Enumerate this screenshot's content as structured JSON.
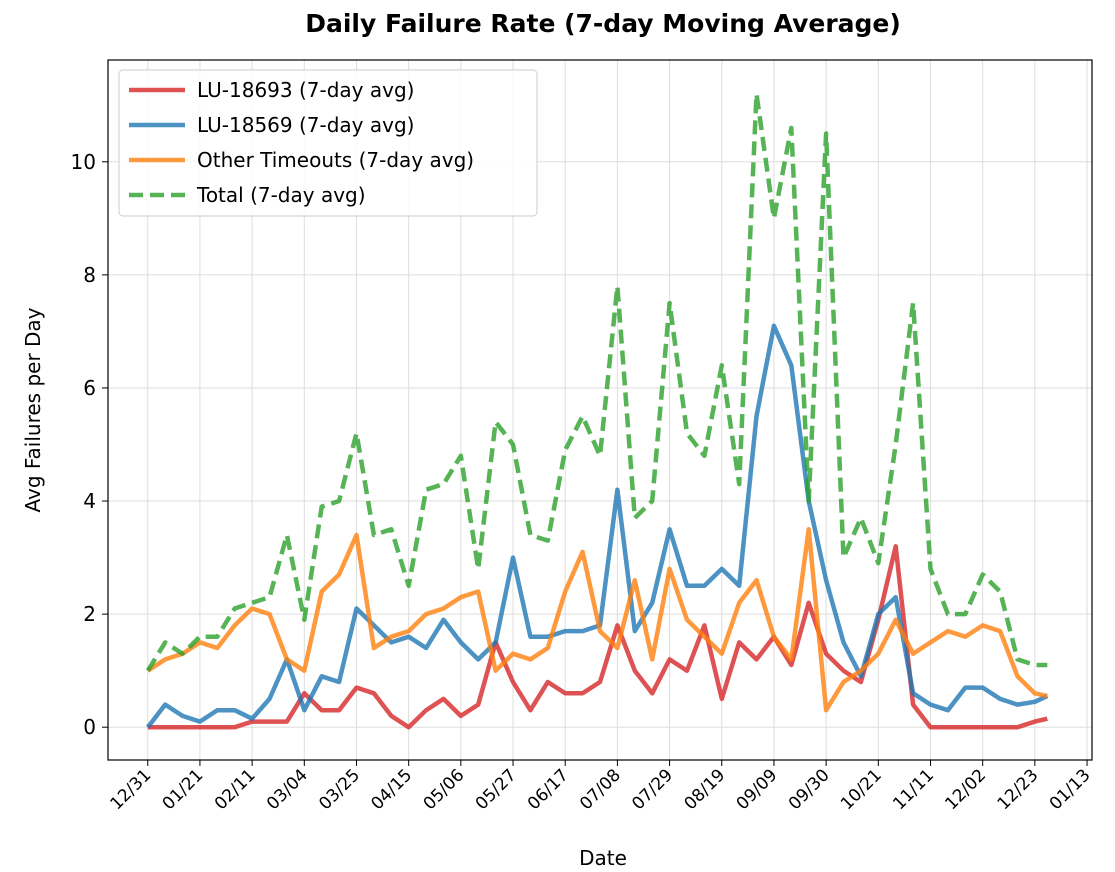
{
  "chart_data": {
    "type": "line",
    "title": "Daily Failure Rate (7-day Moving Average)",
    "x_label": "Date",
    "y_label": "Avg Failures per Day",
    "x": [
      "12/31",
      "01/07",
      "01/14",
      "01/21",
      "01/28",
      "02/04",
      "02/11",
      "02/18",
      "02/25",
      "03/04",
      "03/11",
      "03/18",
      "03/25",
      "04/01",
      "04/08",
      "04/15",
      "04/22",
      "04/29",
      "05/06",
      "05/13",
      "05/20",
      "05/27",
      "06/03",
      "06/10",
      "06/17",
      "06/24",
      "07/01",
      "07/08",
      "07/15",
      "07/22",
      "07/29",
      "08/05",
      "08/12",
      "08/19",
      "08/26",
      "09/02",
      "09/09",
      "09/16",
      "09/23",
      "09/30",
      "10/07",
      "10/14",
      "10/21",
      "10/28",
      "11/04",
      "11/11",
      "11/18",
      "11/25",
      "12/02",
      "12/09",
      "12/16",
      "12/23",
      "12/28"
    ],
    "series": [
      {
        "name": "LU-18693 (7-day avg)",
        "color": "#d62728",
        "dash": false,
        "values": [
          0,
          0,
          0,
          0,
          0,
          0,
          0.1,
          0.1,
          0.1,
          0.6,
          0.3,
          0.3,
          0.7,
          0.6,
          0.2,
          0,
          0.3,
          0.5,
          0.2,
          0.4,
          1.5,
          0.8,
          0.3,
          0.8,
          0.6,
          0.6,
          0.8,
          1.8,
          1.0,
          0.6,
          1.2,
          1.0,
          1.8,
          0.5,
          1.5,
          1.2,
          1.6,
          1.1,
          2.2,
          1.3,
          1.0,
          0.8,
          1.9,
          3.2,
          0.4,
          0,
          0,
          0,
          0,
          0,
          0,
          0.1,
          0.15
        ]
      },
      {
        "name": "LU-18569 (7-day avg)",
        "color": "#1f77b4",
        "dash": false,
        "values": [
          0,
          0.4,
          0.2,
          0.1,
          0.3,
          0.3,
          0.15,
          0.5,
          1.2,
          0.3,
          0.9,
          0.8,
          2.1,
          1.8,
          1.5,
          1.6,
          1.4,
          1.9,
          1.5,
          1.2,
          1.5,
          3.0,
          1.6,
          1.6,
          1.7,
          1.7,
          1.8,
          4.2,
          1.7,
          2.2,
          3.5,
          2.5,
          2.5,
          2.8,
          2.5,
          5.5,
          7.1,
          6.4,
          4.0,
          2.6,
          1.5,
          0.9,
          2.0,
          2.3,
          0.6,
          0.4,
          0.3,
          0.7,
          0.7,
          0.5,
          0.4,
          0.45,
          0.55
        ]
      },
      {
        "name": "Other Timeouts (7-day avg)",
        "color": "#ff7f0e",
        "dash": false,
        "values": [
          1.0,
          1.2,
          1.3,
          1.5,
          1.4,
          1.8,
          2.1,
          2.0,
          1.2,
          1.0,
          2.4,
          2.7,
          3.4,
          1.4,
          1.6,
          1.7,
          2.0,
          2.1,
          2.3,
          2.4,
          1.0,
          1.3,
          1.2,
          1.4,
          2.4,
          3.1,
          1.7,
          1.4,
          2.6,
          1.2,
          2.8,
          1.9,
          1.6,
          1.3,
          2.2,
          2.6,
          1.6,
          1.2,
          3.5,
          0.3,
          0.8,
          1.0,
          1.3,
          1.9,
          1.3,
          1.5,
          1.7,
          1.6,
          1.8,
          1.7,
          0.9,
          0.6,
          0.55
        ]
      },
      {
        "name": "Total (7-day avg)",
        "color": "#2ca02c",
        "dash": true,
        "values": [
          1.0,
          1.5,
          1.3,
          1.6,
          1.6,
          2.1,
          2.2,
          2.3,
          3.4,
          1.9,
          3.9,
          4.0,
          5.2,
          3.4,
          3.5,
          2.5,
          4.2,
          4.3,
          4.8,
          2.8,
          5.4,
          5.0,
          3.4,
          3.3,
          4.9,
          5.5,
          4.8,
          7.8,
          3.7,
          4.0,
          7.5,
          5.2,
          4.8,
          6.4,
          4.3,
          11.2,
          9.0,
          10.6,
          4.0,
          10.5,
          3.0,
          3.7,
          2.9,
          5.0,
          7.5,
          2.8,
          2.0,
          2.0,
          2.7,
          2.4,
          1.2,
          1.1,
          1.1
        ]
      }
    ],
    "xlim": [
      "12/15",
      "01/15"
    ],
    "xticks": [
      "12/31",
      "01/21",
      "02/11",
      "03/04",
      "03/25",
      "04/15",
      "05/06",
      "05/27",
      "06/17",
      "07/08",
      "07/29",
      "08/19",
      "09/09",
      "09/30",
      "10/21",
      "11/11",
      "12/02",
      "12/23",
      "01/13"
    ],
    "ylim": [
      -0.58,
      11.8
    ],
    "yticks": [
      0,
      2,
      4,
      6,
      8,
      10
    ],
    "grid": true,
    "legend": "upper left"
  }
}
